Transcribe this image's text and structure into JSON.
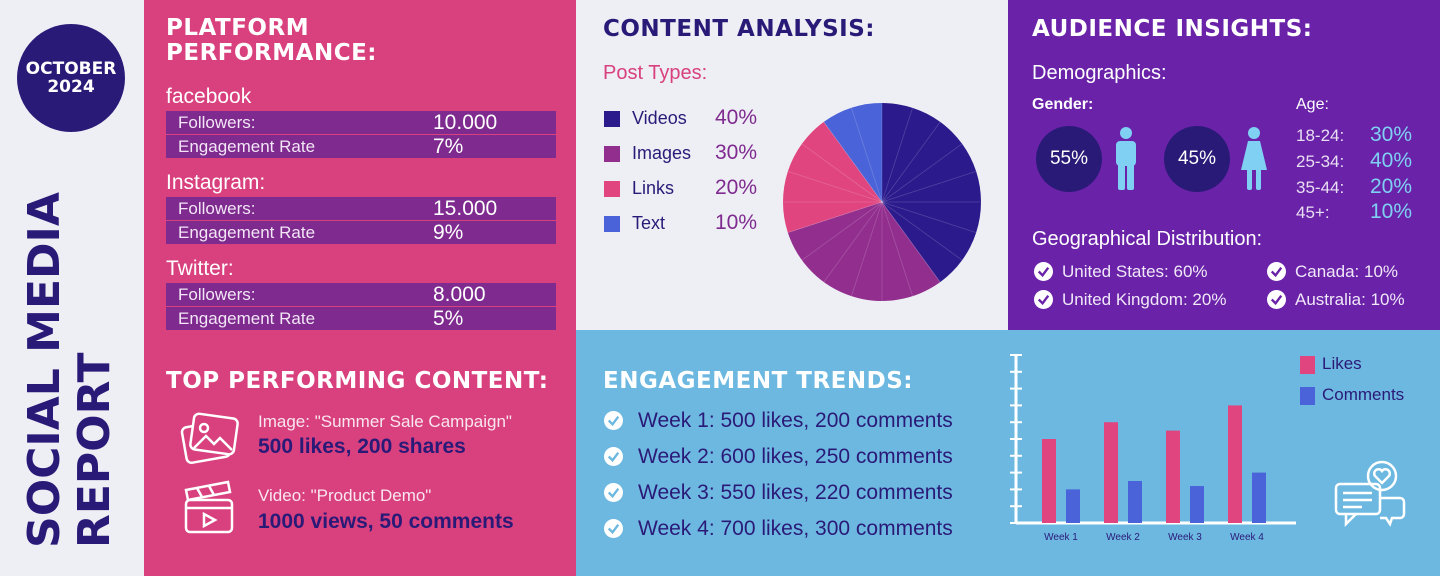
{
  "badge": {
    "line1": "OCTOBER",
    "line2": "2024"
  },
  "vertical_title": {
    "line1": "SOCIAL MEDIA",
    "line2": "REPORT"
  },
  "platform": {
    "title_line1": "PLATFORM",
    "title_line2": "PERFORMANCE:",
    "platforms": [
      {
        "name": "facebook",
        "followers_label": "Followers:",
        "followers": "10.000",
        "engagement_label": "Engagement Rate",
        "engagement": "7%"
      },
      {
        "name": "Instagram:",
        "followers_label": "Followers:",
        "followers": "15.000",
        "engagement_label": "Engagement Rate",
        "engagement": "9%"
      },
      {
        "name": "Twitter:",
        "followers_label": "Followers:",
        "followers": "8.000",
        "engagement_label": "Engagement Rate",
        "engagement": "5%"
      }
    ]
  },
  "top_content": {
    "title": "TOP PERFORMING CONTENT:",
    "items": [
      {
        "icon": "image-icon",
        "line1": "Image: \"Summer Sale Campaign\"",
        "line2": "500 likes, 200 shares"
      },
      {
        "icon": "video-clapper-icon",
        "line1": "Video: \"Product Demo\"",
        "line2": "1000 views, 50 comments"
      }
    ]
  },
  "content_analysis": {
    "title": "CONTENT ANALYSIS:",
    "subtitle": "Post Types:"
  },
  "chart_data": [
    {
      "type": "pie",
      "categories": [
        "Videos",
        "Images",
        "Links",
        "Text"
      ],
      "values": [
        40,
        30,
        20,
        10
      ],
      "labels": [
        "40%",
        "30%",
        "20%",
        "10%"
      ],
      "colors": [
        "#2a1a8c",
        "#922e8e",
        "#e0457f",
        "#4a63d8"
      ],
      "legend": "left"
    },
    {
      "type": "bar",
      "categories": [
        "Week 1",
        "Week 2",
        "Week 3",
        "Week 4"
      ],
      "series": [
        {
          "name": "Likes",
          "values": [
            500,
            600,
            550,
            700
          ],
          "color": "#e0457f"
        },
        {
          "name": "Comments",
          "values": [
            200,
            250,
            220,
            300
          ],
          "color": "#4a63d8"
        }
      ],
      "ylim": [
        0,
        1000
      ],
      "legend": "top-right"
    }
  ],
  "audience": {
    "title": "AUDIENCE INSIGHTS:",
    "demographics": "Demographics:",
    "gender_label": "Gender:",
    "male_pct": "55%",
    "female_pct": "45%",
    "age_label": "Age:",
    "ages": [
      {
        "range": "18-24:",
        "pct": "30%"
      },
      {
        "range": "25-34:",
        "pct": "40%"
      },
      {
        "range": "35-44:",
        "pct": "20%"
      },
      {
        "range": "45+:",
        "pct": "10%"
      }
    ],
    "geo_label": "Geographical Distribution:",
    "geo": [
      "United States: 60%",
      "Canada: 10%",
      "United Kingdom: 20%",
      "Australia: 10%"
    ]
  },
  "trends": {
    "title": "ENGAGEMENT TRENDS:",
    "weeks": [
      "Week 1: 500 likes, 200 comments",
      "Week 2: 600 likes, 250 comments",
      "Week 3: 550 likes, 220 comments",
      "Week 4: 700 likes, 300 comments"
    ]
  },
  "colors": {
    "navy": "#2a1a78",
    "pink": "#d8417e",
    "purple": "#6a22a8",
    "sky": "#6db8e0",
    "light": "#eeeef5"
  }
}
